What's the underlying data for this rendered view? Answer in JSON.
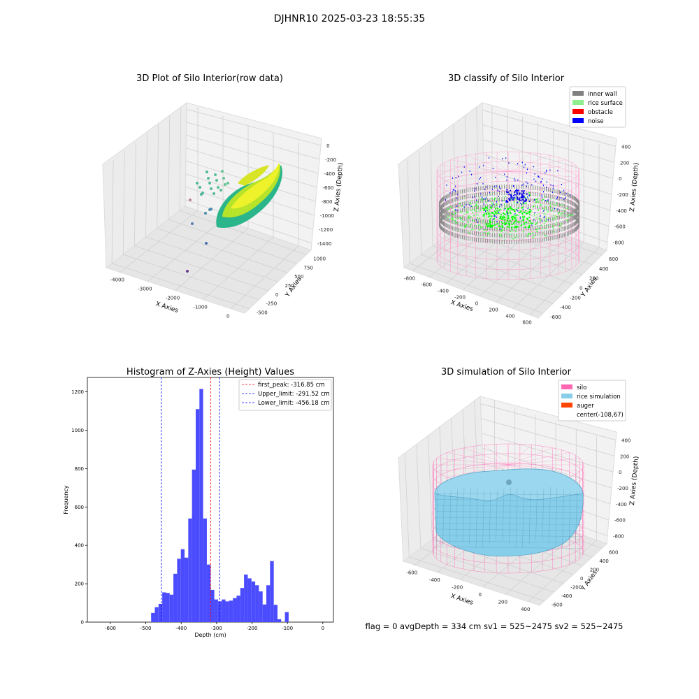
{
  "suptitle": "DJHNR10 2025-03-23 18:55:35",
  "panels": {
    "raw": {
      "title": "3D Plot of Silo Interior(row data)",
      "xlabel": "X Axies",
      "ylabel": "Y Axies",
      "zlabel": "Z Axies (Depth)",
      "xticks": [
        "-4000",
        "-3000",
        "-2000",
        "-1000",
        "0"
      ],
      "yticks": [
        "-500",
        "-250",
        "0",
        "250",
        "500",
        "750",
        "1000"
      ],
      "zticks": [
        "0",
        "-200",
        "-400",
        "-600",
        "-800",
        "-1000",
        "-1200",
        "-1400"
      ]
    },
    "classify": {
      "title": "3D classify of Silo Interior",
      "xlabel": "X Axies",
      "ylabel": "Y Axies",
      "zlabel": "Z Axies (Depth)",
      "xticks": [
        "-800",
        "-600",
        "-400",
        "-200",
        "0",
        "200",
        "400",
        "600"
      ],
      "yticks": [
        "-600",
        "-400",
        "-200",
        "0",
        "200",
        "400",
        "600"
      ],
      "zticks": [
        "400",
        "200",
        "0",
        "-200",
        "-400",
        "-600",
        "-800"
      ],
      "legend": [
        {
          "label": "inner wall",
          "color": "#808080"
        },
        {
          "label": "rice surface",
          "color": "#90ee90"
        },
        {
          "label": "obstacle",
          "color": "#ff0000"
        },
        {
          "label": "noise",
          "color": "#0000ff"
        }
      ]
    },
    "simulation": {
      "title": "3D simulation of Silo Interior",
      "xlabel": "X Axies",
      "ylabel": "Y Axies",
      "zlabel": "Z Axies (Depth)",
      "xticks": [
        "-600",
        "-400",
        "-200",
        "0",
        "200",
        "400"
      ],
      "yticks": [
        "-600",
        "-400",
        "-200",
        "0",
        "200",
        "400",
        "600"
      ],
      "zticks": [
        "400",
        "200",
        "0",
        "-200",
        "-400",
        "-600",
        "-800"
      ],
      "legend": [
        {
          "label": "silo",
          "color": "#ff69b4"
        },
        {
          "label": "rice simulation",
          "color": "#87ceeb"
        },
        {
          "label": "auger",
          "color": "#ff4500"
        },
        {
          "label": "center(-108,67)",
          "color": ""
        }
      ],
      "status": "flag = 0     avgDepth = 334 cm  sv1 = 525~2475  sv2 = 525~2475"
    }
  },
  "chart_data": {
    "type": "bar",
    "title": "Histogram of Z-Axies (Height) Values",
    "xlabel": "Depth (cm)",
    "ylabel": "Frequency",
    "xlim": [
      -665,
      30
    ],
    "ylim": [
      0,
      1275
    ],
    "xticks": [
      -600,
      -500,
      -400,
      -300,
      -200,
      -100,
      0
    ],
    "yticks": [
      0,
      200,
      400,
      600,
      800,
      1000,
      1200
    ],
    "bar_color": "#4c4cff",
    "bin_width": 10.5,
    "bins": [
      [
        -485,
        48
      ],
      [
        -474.5,
        78
      ],
      [
        -464,
        95
      ],
      [
        -453.5,
        155
      ],
      [
        -443,
        152
      ],
      [
        -432.5,
        143
      ],
      [
        -422,
        252
      ],
      [
        -411.5,
        330
      ],
      [
        -401,
        380
      ],
      [
        -390.5,
        336
      ],
      [
        -380,
        540
      ],
      [
        -369.5,
        795
      ],
      [
        -359,
        1110
      ],
      [
        -348.5,
        1215
      ],
      [
        -338,
        540
      ],
      [
        -327.5,
        300
      ],
      [
        -317,
        168
      ],
      [
        -306.5,
        118
      ],
      [
        -296,
        108
      ],
      [
        -285.5,
        118
      ],
      [
        -275,
        108
      ],
      [
        -264.5,
        112
      ],
      [
        -254,
        125
      ],
      [
        -243.5,
        138
      ],
      [
        -233,
        178
      ],
      [
        -222.5,
        248
      ],
      [
        -212,
        228
      ],
      [
        -201.5,
        212
      ],
      [
        -191,
        192
      ],
      [
        -180.5,
        160
      ],
      [
        -170,
        92
      ],
      [
        -159.5,
        192
      ],
      [
        -149,
        318
      ],
      [
        -138.5,
        90
      ],
      [
        -128,
        15
      ],
      [
        -107,
        52
      ]
    ],
    "lines": [
      {
        "label": "first_peak: -316.85 cm",
        "x": -316.85,
        "color": "#ff0000"
      },
      {
        "label": "Upper_limit: -291.52 cm",
        "x": -291.52,
        "color": "#0000ff"
      },
      {
        "label": "Lower_limit: -456.18 cm",
        "x": -456.18,
        "color": "#0000ff"
      }
    ]
  }
}
